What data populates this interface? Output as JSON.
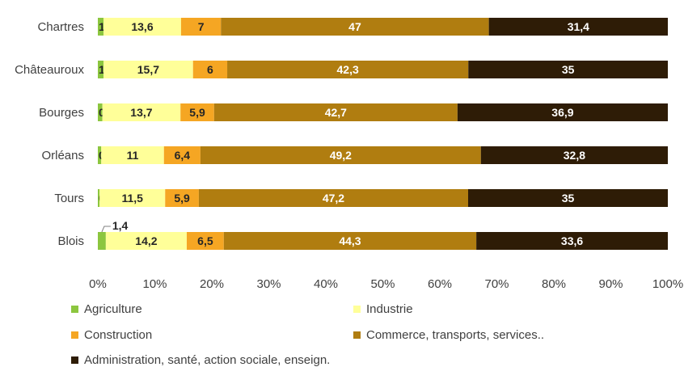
{
  "chart_data": {
    "type": "bar",
    "orientation": "horizontal",
    "stacked": "percent",
    "categories": [
      "Chartres",
      "Châteauroux",
      "Bourges",
      "Orléans",
      "Tours",
      "Blois"
    ],
    "series": [
      {
        "name": "Agriculture",
        "color": "#8cc63f",
        "values": [
          1,
          1,
          0.8,
          0.6,
          0.3,
          1.4
        ],
        "labels": [
          "1",
          "1",
          "0,8",
          "0,6",
          "0,3",
          "1,4"
        ]
      },
      {
        "name": "Industrie",
        "color": "#ffff99",
        "values": [
          13.6,
          15.7,
          13.7,
          11,
          11.5,
          14.2
        ],
        "labels": [
          "13,6",
          "15,7",
          "13,7",
          "11",
          "11,5",
          "14,2"
        ]
      },
      {
        "name": "Construction",
        "color": "#f5a623",
        "values": [
          7,
          6,
          5.9,
          6.4,
          5.9,
          6.5
        ],
        "labels": [
          "7",
          "6",
          "5,9",
          "6,4",
          "5,9",
          "6,5"
        ]
      },
      {
        "name": "Commerce, transports, services..",
        "color": "#b07d10",
        "values": [
          47,
          42.3,
          42.7,
          49.2,
          47.2,
          44.3
        ],
        "labels": [
          "47",
          "42,3",
          "42,7",
          "49,2",
          "47,2",
          "44,3"
        ]
      },
      {
        "name": "Administration, santé, action sociale, enseign.",
        "color": "#2e1c06",
        "values": [
          31.4,
          35,
          36.9,
          32.8,
          35,
          33.6
        ],
        "labels": [
          "31,4",
          "35",
          "36,9",
          "32,8",
          "35",
          "33,6"
        ]
      }
    ],
    "xticks": [
      "0%",
      "10%",
      "20%",
      "30%",
      "40%",
      "50%",
      "60%",
      "70%",
      "80%",
      "90%",
      "100%"
    ],
    "xlim": [
      0,
      100
    ],
    "legend_position": "bottom",
    "grid": false
  }
}
